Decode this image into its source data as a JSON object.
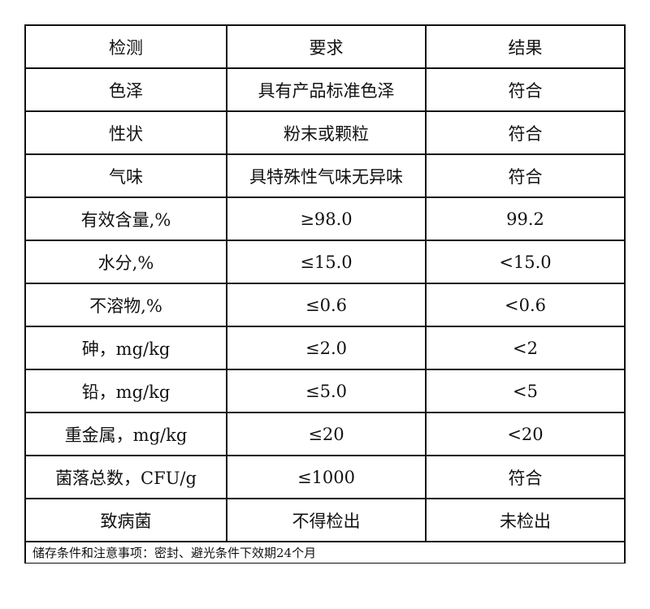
{
  "header": [
    "检测",
    "要求",
    "结果"
  ],
  "rows": [
    [
      "色泽",
      "具有产品标准色泽",
      "符合"
    ],
    [
      "性状",
      "粉末或颗粒",
      "符合"
    ],
    [
      "气味",
      "具特殊性气味无异味",
      "符合"
    ],
    [
      "有效含量,%",
      "≥98.0",
      "99.2"
    ],
    [
      "水分,%",
      "≤15.0",
      "<15.0"
    ],
    [
      "不溶物,%",
      "≤0.6",
      "<0.6"
    ],
    [
      "砷，mg/kg",
      "≤2.0",
      "<2"
    ],
    [
      "铅，mg/kg",
      "≤5.0",
      "<5"
    ],
    [
      "重金属，mg/kg",
      "≤20",
      "<20"
    ],
    [
      "菌落总数，CFU/g",
      "≤1000",
      "符合"
    ],
    [
      "致病菌",
      "不得检出",
      "未检出"
    ]
  ],
  "footer": "储存条件和注意事项：密封、避光条件下效期24个月"
}
